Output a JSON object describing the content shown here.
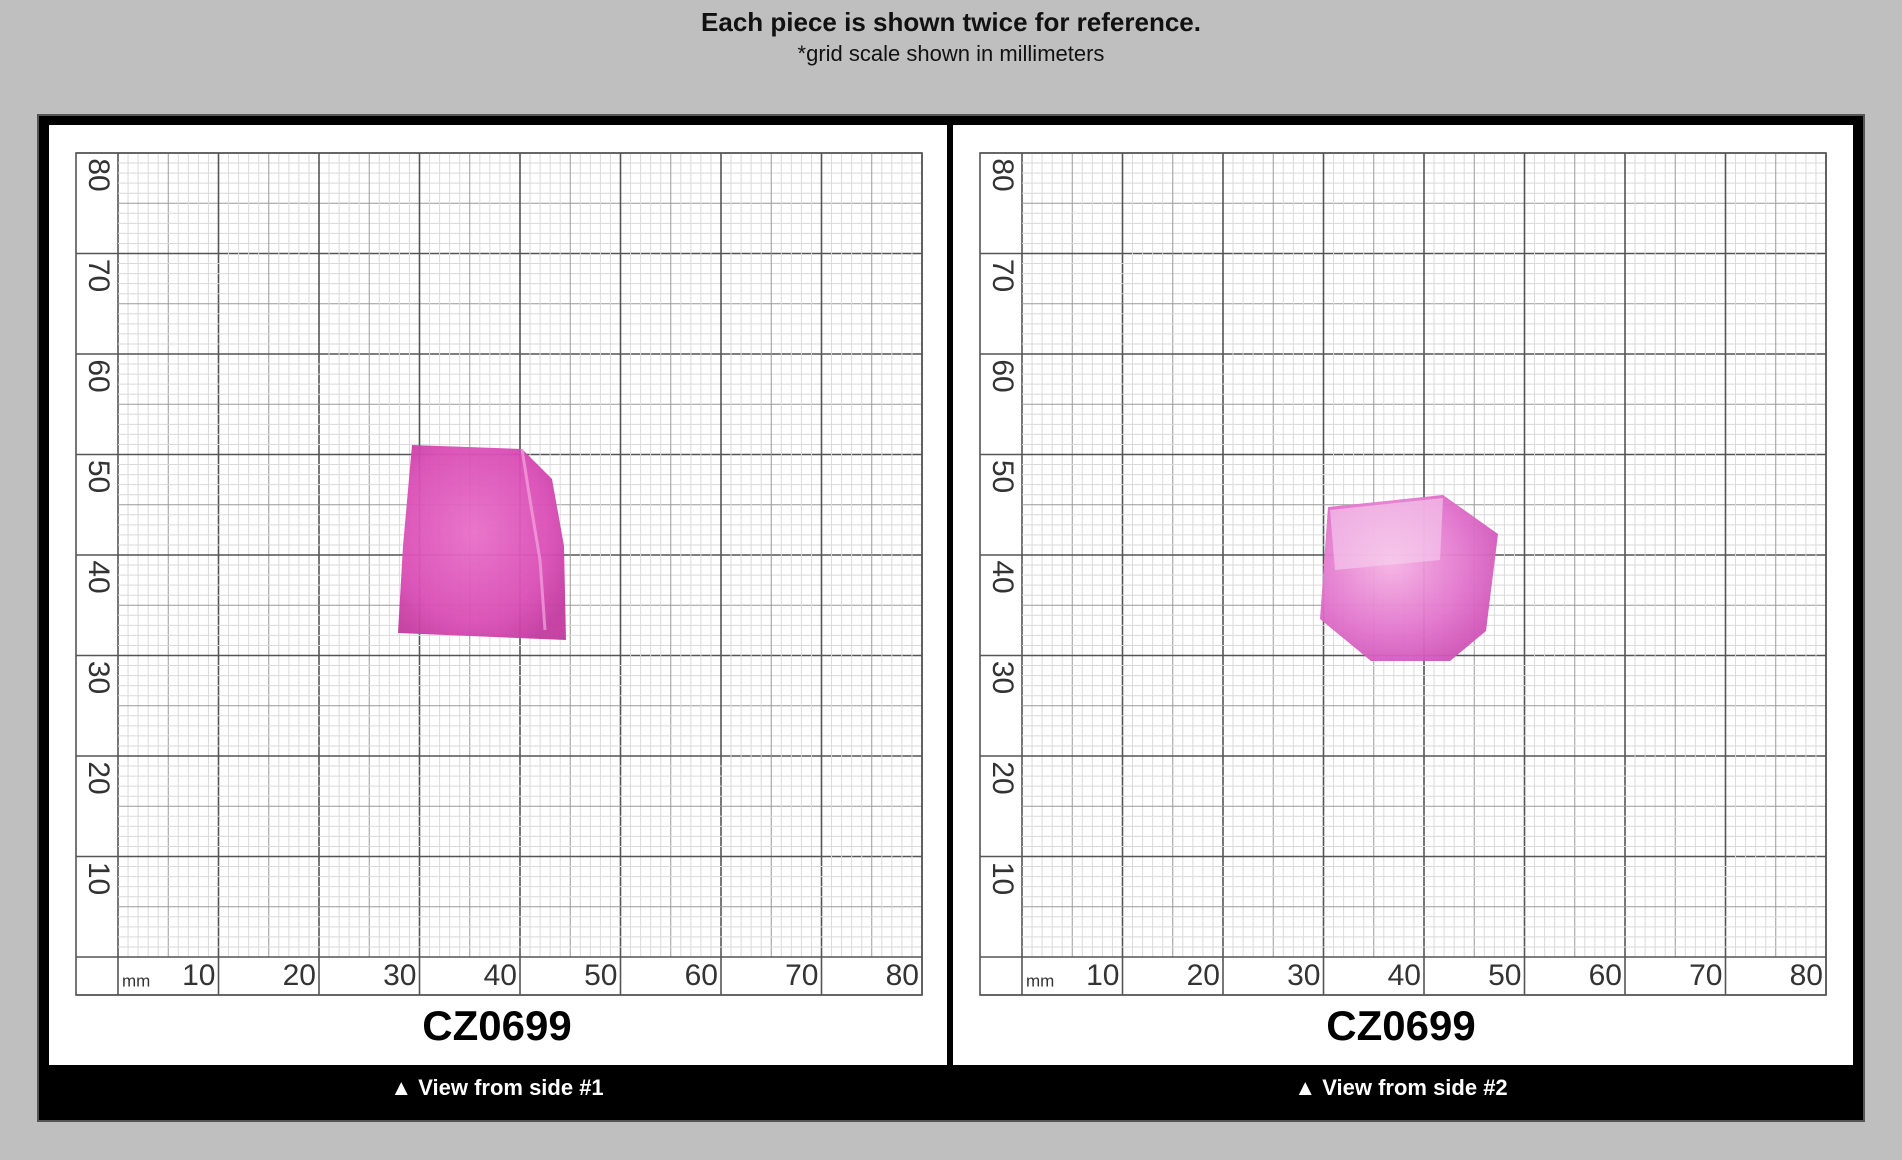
{
  "header": {
    "title": "Each piece is shown twice for reference.",
    "subtitle": "*grid scale shown in millimeters"
  },
  "panels": [
    {
      "grid": {
        "unit": "mm",
        "x_labels": [
          10,
          20,
          30,
          40,
          50,
          60,
          70,
          80
        ],
        "y_labels": [
          80,
          70,
          60,
          50,
          40,
          30,
          20,
          10
        ]
      },
      "label": "CZ0699",
      "caption": "▲ View from side #1"
    },
    {
      "grid": {
        "unit": "mm",
        "x_labels": [
          10,
          20,
          30,
          40,
          50,
          60,
          70,
          80
        ],
        "y_labels": [
          80,
          70,
          60,
          50,
          40,
          30,
          20,
          10
        ]
      },
      "label": "CZ0699",
      "caption": "▲ View from side #2"
    }
  ]
}
